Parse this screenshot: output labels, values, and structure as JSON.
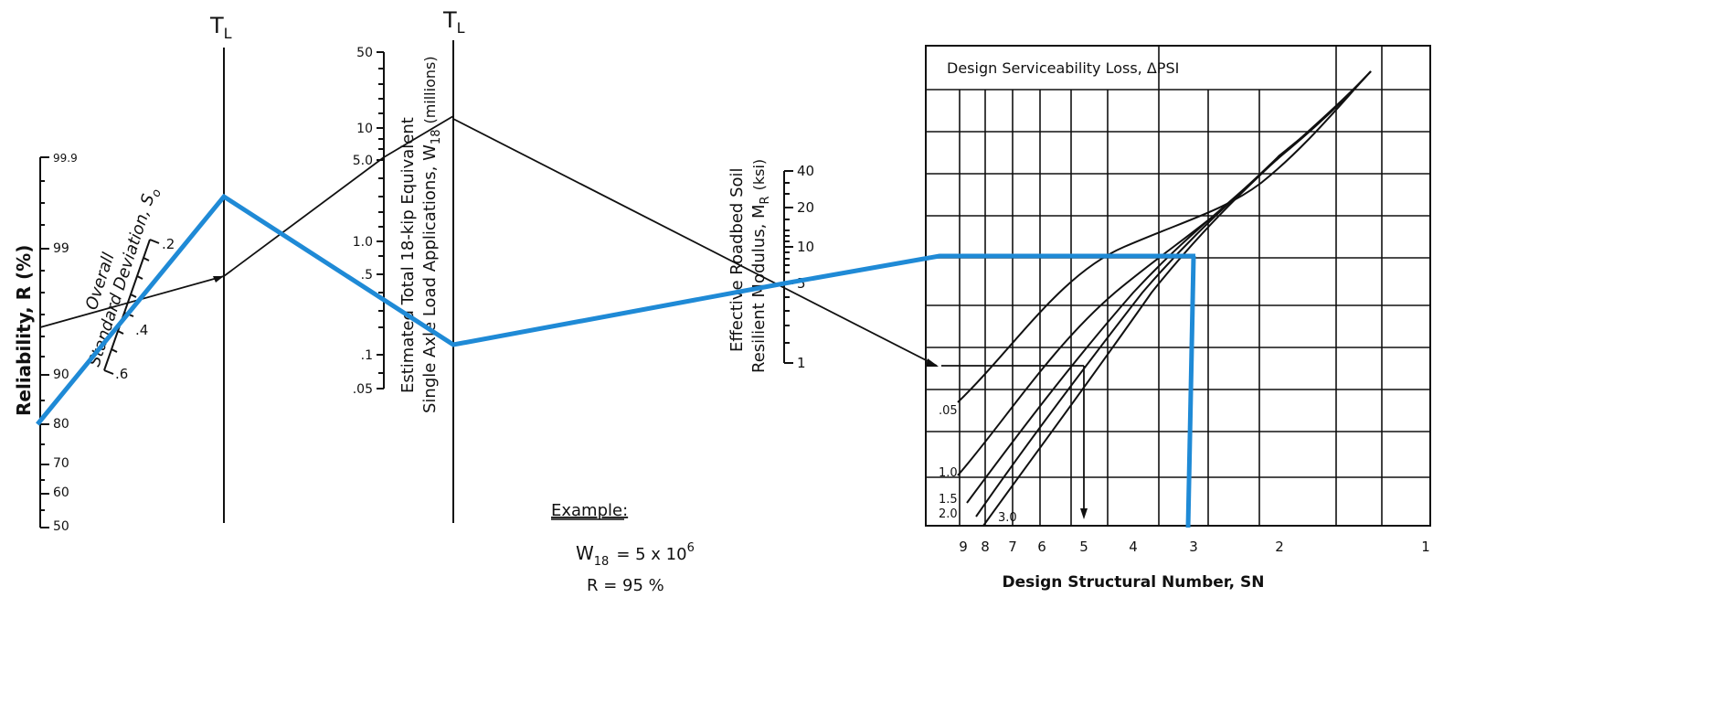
{
  "reliability": {
    "title": "Reliability, R (%)",
    "ticks": [
      "50",
      "60",
      "70",
      "80",
      "90",
      "99",
      "99.9"
    ]
  },
  "std_dev": {
    "title_line1": "Overall",
    "title_line2": "Standard Deviation, S",
    "title_sub": "o",
    "ticks": [
      ".2",
      ".4",
      ".6"
    ]
  },
  "turning_line": {
    "label": "T",
    "sub": "L"
  },
  "w18_axis": {
    "title_line1": "Estimated Total 18-kip Equivalent",
    "title_line2": "Single Axle Load Applications, W",
    "title_sub": "18",
    "title_suffix": "(millions)",
    "ticks": [
      "50",
      "10",
      "5.0",
      "1.0",
      ".5",
      ".1",
      ".05"
    ]
  },
  "mr_axis": {
    "title_line1": "Effective Roadbed Soil",
    "title_line2": "Resilient Modulus, M",
    "title_sub": "R",
    "title_suffix": "(ksi)",
    "ticks": [
      "40",
      "20",
      "10",
      "5",
      "1"
    ]
  },
  "design_chart": {
    "header": "Design Serviceability Loss,  ΔPSI",
    "curve_labels": [
      ".05",
      "1.0",
      "1.5",
      "2.0",
      "3.0"
    ],
    "sn_ticks": [
      "9",
      "8",
      "7",
      "6",
      "5",
      "4",
      "3",
      "2",
      "1"
    ],
    "xlabel": "Design Structural Number, SN"
  },
  "example": {
    "heading": "Example:",
    "w18_label": "W",
    "w18_sub": "18",
    "w18_value": "= 5 x 10",
    "w18_exp": "6",
    "r_line": "R = 95 %"
  },
  "colors": {
    "ink": "#111111",
    "solution_path": "#1f8ad6"
  }
}
